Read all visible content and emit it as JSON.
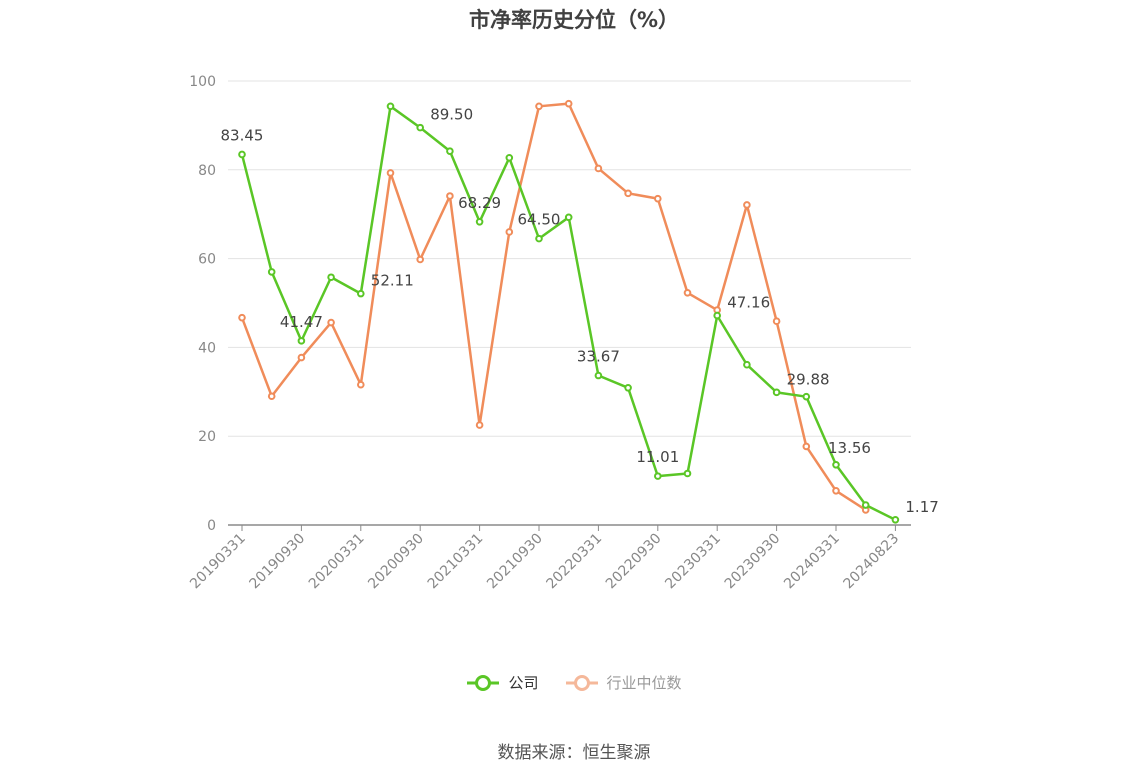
{
  "title": "市净率历史分位（%）",
  "source": "数据来源：恒生聚源",
  "chart_data": {
    "type": "line",
    "title": "市净率历史分位（%）",
    "ylim": [
      0,
      100
    ],
    "yticks": [
      0,
      20,
      40,
      60,
      80,
      100
    ],
    "grid": true,
    "legend_position": "bottom",
    "x_tick_labels": [
      "20190331",
      "20190930",
      "20200331",
      "20200930",
      "20210331",
      "20210930",
      "20220331",
      "20220930",
      "20230331",
      "20230930",
      "20240331",
      "20240823"
    ],
    "x": [
      "20190331",
      "20190630",
      "20190930",
      "20191231",
      "20200331",
      "20200630",
      "20200930",
      "20201231",
      "20210331",
      "20210630",
      "20210930",
      "20211231",
      "20220331",
      "20220630",
      "20220930",
      "20221231",
      "20230331",
      "20230630",
      "20230930",
      "20231231",
      "20240331",
      "20240630",
      "20240823"
    ],
    "series": [
      {
        "name": "公司",
        "color": "#5ac626",
        "values": [
          83.45,
          57.0,
          41.47,
          55.8,
          52.11,
          94.3,
          89.5,
          84.2,
          68.29,
          82.7,
          64.5,
          69.3,
          33.67,
          30.9,
          11.01,
          11.6,
          47.16,
          36.1,
          29.88,
          28.9,
          13.56,
          4.5,
          1.17
        ],
        "labels": {
          "0": "83.45",
          "2": "41.47",
          "4": "52.11",
          "6": "89.50",
          "8": "68.29",
          "10": "64.50",
          "12": "33.67",
          "14": "11.01",
          "16": "47.16",
          "18": "29.88",
          "20": "13.56",
          "22": "1.17"
        }
      },
      {
        "name": "行业中位数",
        "color": "#f08c5a",
        "legend_color": "#f5b89a",
        "values": [
          46.7,
          29.0,
          37.7,
          45.6,
          31.6,
          79.3,
          59.8,
          74.1,
          22.5,
          66.0,
          94.3,
          94.9,
          80.3,
          74.7,
          73.5,
          52.3,
          48.4,
          72.1,
          45.9,
          17.7,
          7.7,
          3.4,
          null
        ]
      }
    ]
  }
}
